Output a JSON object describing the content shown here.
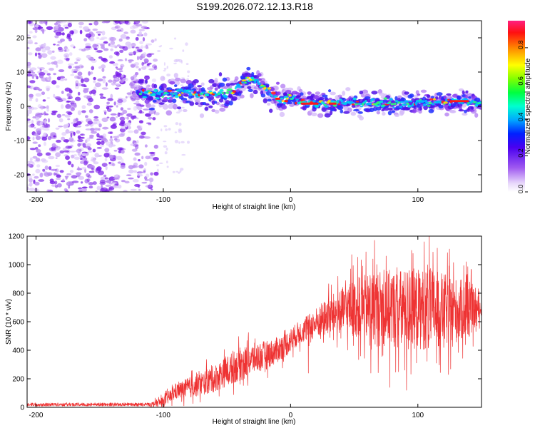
{
  "title": "S199.2026.072.12.13.R18",
  "chart_data": [
    {
      "type": "heatmap",
      "name": "spectrogram",
      "xlabel": "Height of straight line (km)",
      "ylabel": "Frequency (Hz)",
      "xlim": [
        -207,
        150
      ],
      "ylim": [
        -25,
        25
      ],
      "xticks": [
        -200,
        -100,
        0,
        100
      ],
      "yticks": [
        20,
        10,
        0,
        -10,
        -20
      ],
      "colorbar": {
        "label": "Normalized spectral amplitude",
        "range": [
          0.0,
          0.95
        ],
        "ticks": [
          0.0,
          0.2,
          0.4,
          0.6,
          0.8
        ],
        "tick_labels": [
          "0.0",
          "0.2",
          "0.4",
          "0.6",
          "0.8"
        ]
      },
      "noise_region": {
        "x_from": -207,
        "x_to": -105,
        "y_from": -25,
        "y_to": 25,
        "amplitude": 0.1
      },
      "band_center_trace": [
        {
          "x": -120,
          "y": 4.0
        },
        {
          "x": -100,
          "y": 3.5
        },
        {
          "x": -80,
          "y": 4.0
        },
        {
          "x": -60,
          "y": 3.5
        },
        {
          "x": -45,
          "y": 4.5
        },
        {
          "x": -35,
          "y": 7.5
        },
        {
          "x": -28,
          "y": 8.0
        },
        {
          "x": -20,
          "y": 5.5
        },
        {
          "x": -12,
          "y": 3.0
        },
        {
          "x": -5,
          "y": 1.5
        },
        {
          "x": -2,
          "y": 3.5
        },
        {
          "x": 5,
          "y": 1.5
        },
        {
          "x": 20,
          "y": 1.0
        },
        {
          "x": 50,
          "y": 0.8
        },
        {
          "x": 80,
          "y": 0.8
        },
        {
          "x": 110,
          "y": 1.2
        },
        {
          "x": 130,
          "y": 1.5
        },
        {
          "x": 150,
          "y": 1.0
        }
      ]
    },
    {
      "type": "line",
      "name": "snr",
      "xlabel": "Height of straight line (km)",
      "ylabel": "SNR (10 * v/v)",
      "xlim": [
        -207,
        150
      ],
      "ylim": [
        0,
        1200
      ],
      "xticks": [
        -200,
        -100,
        0,
        100
      ],
      "yticks": [
        0,
        200,
        400,
        600,
        800,
        1000,
        1200
      ],
      "color": "#ee3333",
      "envelope": [
        {
          "x": -207,
          "y": 20
        },
        {
          "x": -110,
          "y": 20
        },
        {
          "x": -100,
          "y": 40
        },
        {
          "x": -90,
          "y": 110
        },
        {
          "x": -75,
          "y": 150
        },
        {
          "x": -60,
          "y": 200
        },
        {
          "x": -45,
          "y": 280
        },
        {
          "x": -30,
          "y": 340
        },
        {
          "x": -15,
          "y": 380
        },
        {
          "x": -5,
          "y": 430
        },
        {
          "x": 5,
          "y": 510
        },
        {
          "x": 20,
          "y": 590
        },
        {
          "x": 30,
          "y": 640
        },
        {
          "x": 45,
          "y": 690
        },
        {
          "x": 60,
          "y": 700
        },
        {
          "x": 80,
          "y": 690
        },
        {
          "x": 100,
          "y": 690
        },
        {
          "x": 120,
          "y": 680
        },
        {
          "x": 140,
          "y": 680
        },
        {
          "x": 150,
          "y": 690
        }
      ],
      "spread": [
        {
          "x": -207,
          "y": 15
        },
        {
          "x": -110,
          "y": 15
        },
        {
          "x": -100,
          "y": 40
        },
        {
          "x": -80,
          "y": 80
        },
        {
          "x": -40,
          "y": 130
        },
        {
          "x": -10,
          "y": 100
        },
        {
          "x": 10,
          "y": 90
        },
        {
          "x": 40,
          "y": 180
        },
        {
          "x": 70,
          "y": 300
        },
        {
          "x": 110,
          "y": 320
        },
        {
          "x": 140,
          "y": 220
        },
        {
          "x": 150,
          "y": 60
        }
      ],
      "peak_values": [
        {
          "x": 48,
          "y": 1070
        },
        {
          "x": 66,
          "y": 1170
        },
        {
          "x": 105,
          "y": 1160
        },
        {
          "x": 109,
          "y": 1200
        },
        {
          "x": 95,
          "y": 1100
        },
        {
          "x": 138,
          "y": 1020
        },
        {
          "x": 47,
          "y": 970
        },
        {
          "x": 75,
          "y": 1060
        }
      ],
      "min_values": [
        {
          "x": 78,
          "y": 140
        },
        {
          "x": 91,
          "y": 120
        },
        {
          "x": 63,
          "y": 240
        },
        {
          "x": 124,
          "y": 230
        },
        {
          "x": 55,
          "y": 360
        },
        {
          "x": 14,
          "y": 240
        }
      ]
    }
  ]
}
